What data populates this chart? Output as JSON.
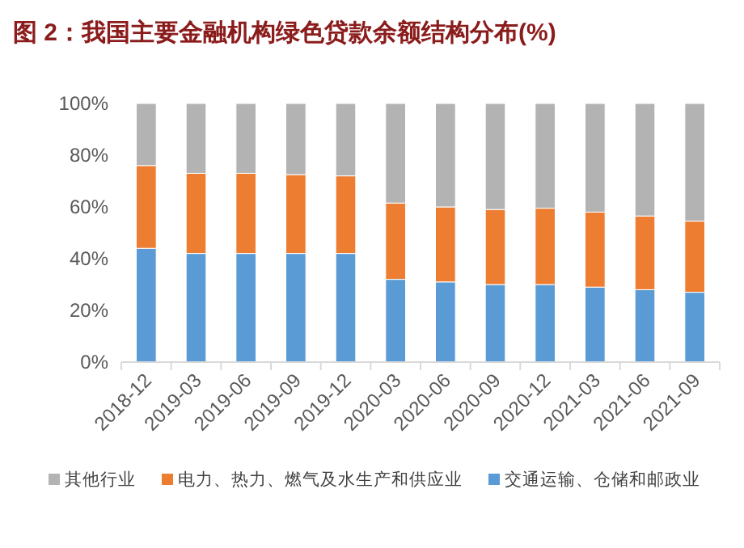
{
  "chart_data": {
    "type": "bar",
    "stacked": true,
    "title": "图 2：我国主要金融机构绿色贷款余额结构分布(%)",
    "categories": [
      "2018-12",
      "2019-03",
      "2019-06",
      "2019-09",
      "2019-12",
      "2020-03",
      "2020-06",
      "2020-09",
      "2020-12",
      "2021-03",
      "2021-06",
      "2021-09"
    ],
    "series": [
      {
        "name": "交通运输、仓储和邮政业",
        "color": "#5b9bd5",
        "values": [
          44,
          42,
          42,
          42,
          42,
          32,
          31,
          30,
          30,
          29,
          28,
          27
        ]
      },
      {
        "name": "电力、热力、燃气及水生产和供应业",
        "color": "#ed7d31",
        "values": [
          32,
          31,
          31,
          30.5,
          30,
          29.5,
          29,
          29,
          29.5,
          29,
          28.5,
          27.5
        ]
      },
      {
        "name": "其他行业",
        "color": "#b3b3b3",
        "values": [
          24,
          27,
          27,
          27.5,
          28,
          38.5,
          40,
          41,
          40.5,
          42,
          43.5,
          45.5
        ]
      }
    ],
    "ylim": [
      0,
      100
    ],
    "yticks": [
      {
        "value": 0,
        "label": "0%"
      },
      {
        "value": 20,
        "label": "20%"
      },
      {
        "value": 40,
        "label": "40%"
      },
      {
        "value": 60,
        "label": "60%"
      },
      {
        "value": 80,
        "label": "80%"
      },
      {
        "value": 100,
        "label": "100%"
      }
    ],
    "grid": false,
    "legend": "bottom"
  }
}
